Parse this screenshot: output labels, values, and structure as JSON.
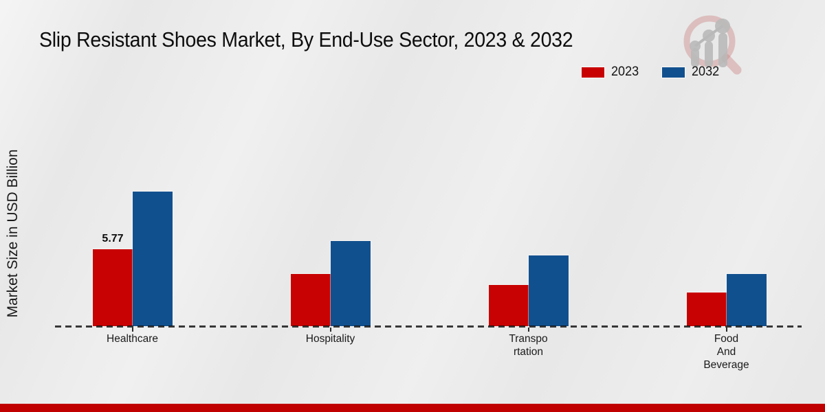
{
  "page": {
    "title": "Slip Resistant Shoes Market, By End-Use Sector, 2023 & 2032",
    "y_axis_label": "Market Size in USD Billion",
    "footer_color": "#c00000",
    "background_color": "#e8e8e8"
  },
  "legend": [
    {
      "label": "2023",
      "color": "#c80202"
    },
    {
      "label": "2032",
      "color": "#11508e"
    }
  ],
  "watermark": {
    "icon": "magnifier-bar-chart-logo",
    "glass_color": "#d9b0b0",
    "bars_color": "#c9c9c9"
  },
  "chart_data": {
    "type": "bar",
    "title": "Slip Resistant Shoes Market, By End-Use Sector, 2023 & 2032",
    "xlabel": "",
    "ylabel": "Market Size in USD Billion",
    "unit": "USD Billion",
    "categories": [
      "Healthcare",
      "Hospitality",
      "Transportation",
      "Food And Beverage"
    ],
    "category_display": [
      [
        "Healthcare"
      ],
      [
        "Hospitality"
      ],
      [
        "Transpo",
        "rtation"
      ],
      [
        "Food",
        "And",
        "Beverage"
      ]
    ],
    "series": [
      {
        "name": "2023",
        "color": "#c80202",
        "values": [
          5.77,
          3.9,
          3.1,
          2.5
        ],
        "labels": [
          "5.77",
          "",
          "",
          ""
        ]
      },
      {
        "name": "2032",
        "color": "#11508e",
        "values": [
          10.1,
          6.4,
          5.3,
          3.9
        ],
        "labels": [
          "",
          "",
          "",
          ""
        ]
      }
    ],
    "ylim": [
      0,
      12
    ],
    "grid": false,
    "y_axis_ticks_shown": false,
    "legend_position": "top-right",
    "baseline_style": "dashed"
  }
}
